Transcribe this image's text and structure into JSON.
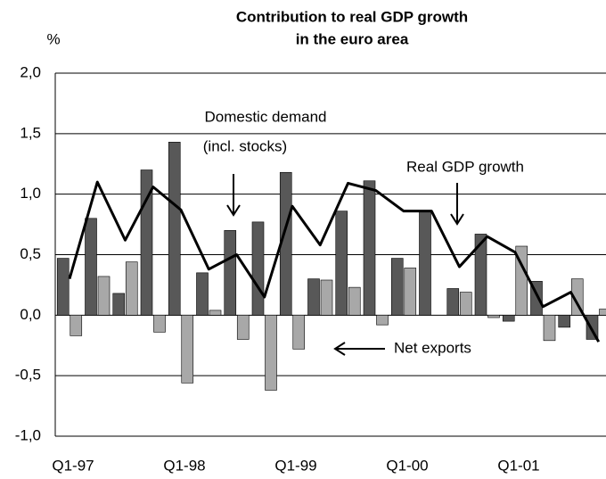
{
  "chart_data": {
    "type": "bar",
    "title": [
      "Contribution to real GDP growth",
      "in the euro area"
    ],
    "y_label": "%",
    "categories": [
      "Q1-97",
      null,
      null,
      null,
      "Q1-98",
      null,
      null,
      null,
      "Q1-99",
      null,
      null,
      null,
      "Q1-00",
      null,
      null,
      null,
      "Q1-01",
      null,
      null,
      null
    ],
    "series": [
      {
        "color": "#585858",
        "values": [
          0.47,
          0.8,
          0.18,
          1.2,
          1.43,
          0.35,
          0.7,
          0.77,
          1.18,
          0.3,
          0.86,
          1.11,
          0.47,
          0.86,
          0.22,
          0.67,
          -0.05,
          0.28,
          -0.1,
          -0.2
        ]
      },
      {
        "color": "#a8a8a8",
        "values": [
          -0.17,
          0.32,
          0.44,
          -0.14,
          -0.56,
          0.04,
          -0.2,
          -0.62,
          -0.28,
          0.29,
          0.23,
          -0.08,
          0.39,
          0.0,
          0.19,
          -0.02,
          0.57,
          -0.21,
          0.3,
          0.05
        ]
      },
      {
        "type": "line",
        "color": "#000000",
        "values": [
          0.3,
          1.1,
          0.62,
          1.06,
          0.87,
          0.38,
          0.5,
          0.15,
          0.9,
          0.58,
          1.09,
          1.03,
          0.86,
          0.86,
          0.4,
          0.65,
          0.52,
          0.07,
          0.19,
          -0.22
        ]
      }
    ],
    "annotations": [
      "Domestic demand",
      "(incl. stocks)",
      "Real GDP growth",
      "Net exports"
    ],
    "ylim": [
      -1.0,
      2.0
    ],
    "yticks": [
      {
        "value": -1.0,
        "label": "-1,0"
      },
      {
        "value": -0.5,
        "label": "-0,5"
      },
      {
        "value": 0.0,
        "label": "0,0"
      },
      {
        "value": 0.5,
        "label": "0,5"
      },
      {
        "value": 1.0,
        "label": "1,0"
      },
      {
        "value": 1.5,
        "label": "1,5"
      },
      {
        "value": 2.0,
        "label": "2,0"
      }
    ],
    "grid": true
  }
}
